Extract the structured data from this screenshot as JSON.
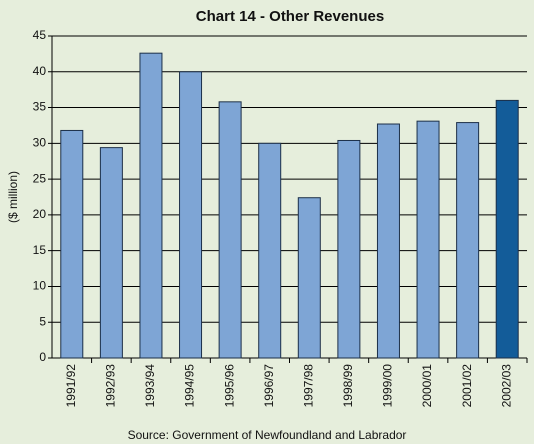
{
  "chart_data": {
    "type": "bar",
    "title": "Chart 14 - Other Revenues",
    "y_label": "($ million)",
    "source": "Source: Government of Newfoundland and Labrador",
    "categories": [
      "1991/92",
      "1992/93",
      "1993/94",
      "1994/95",
      "1995/96",
      "1996/97",
      "1997/98",
      "1998/99",
      "1999/00",
      "2000/01",
      "2001/02",
      "2002/03"
    ],
    "values": [
      31.8,
      29.4,
      42.6,
      40.0,
      35.8,
      30.0,
      22.4,
      30.4,
      32.7,
      33.1,
      32.9,
      36.0
    ],
    "colors": [
      "#7ea5d5",
      "#7ea5d5",
      "#7ea5d5",
      "#7ea5d5",
      "#7ea5d5",
      "#7ea5d5",
      "#7ea5d5",
      "#7ea5d5",
      "#7ea5d5",
      "#7ea5d5",
      "#7ea5d5",
      "#135c99"
    ],
    "ylim": [
      0,
      45
    ],
    "yticks": [
      0,
      5,
      10,
      15,
      20,
      25,
      30,
      35,
      40,
      45
    ],
    "grid": true
  }
}
